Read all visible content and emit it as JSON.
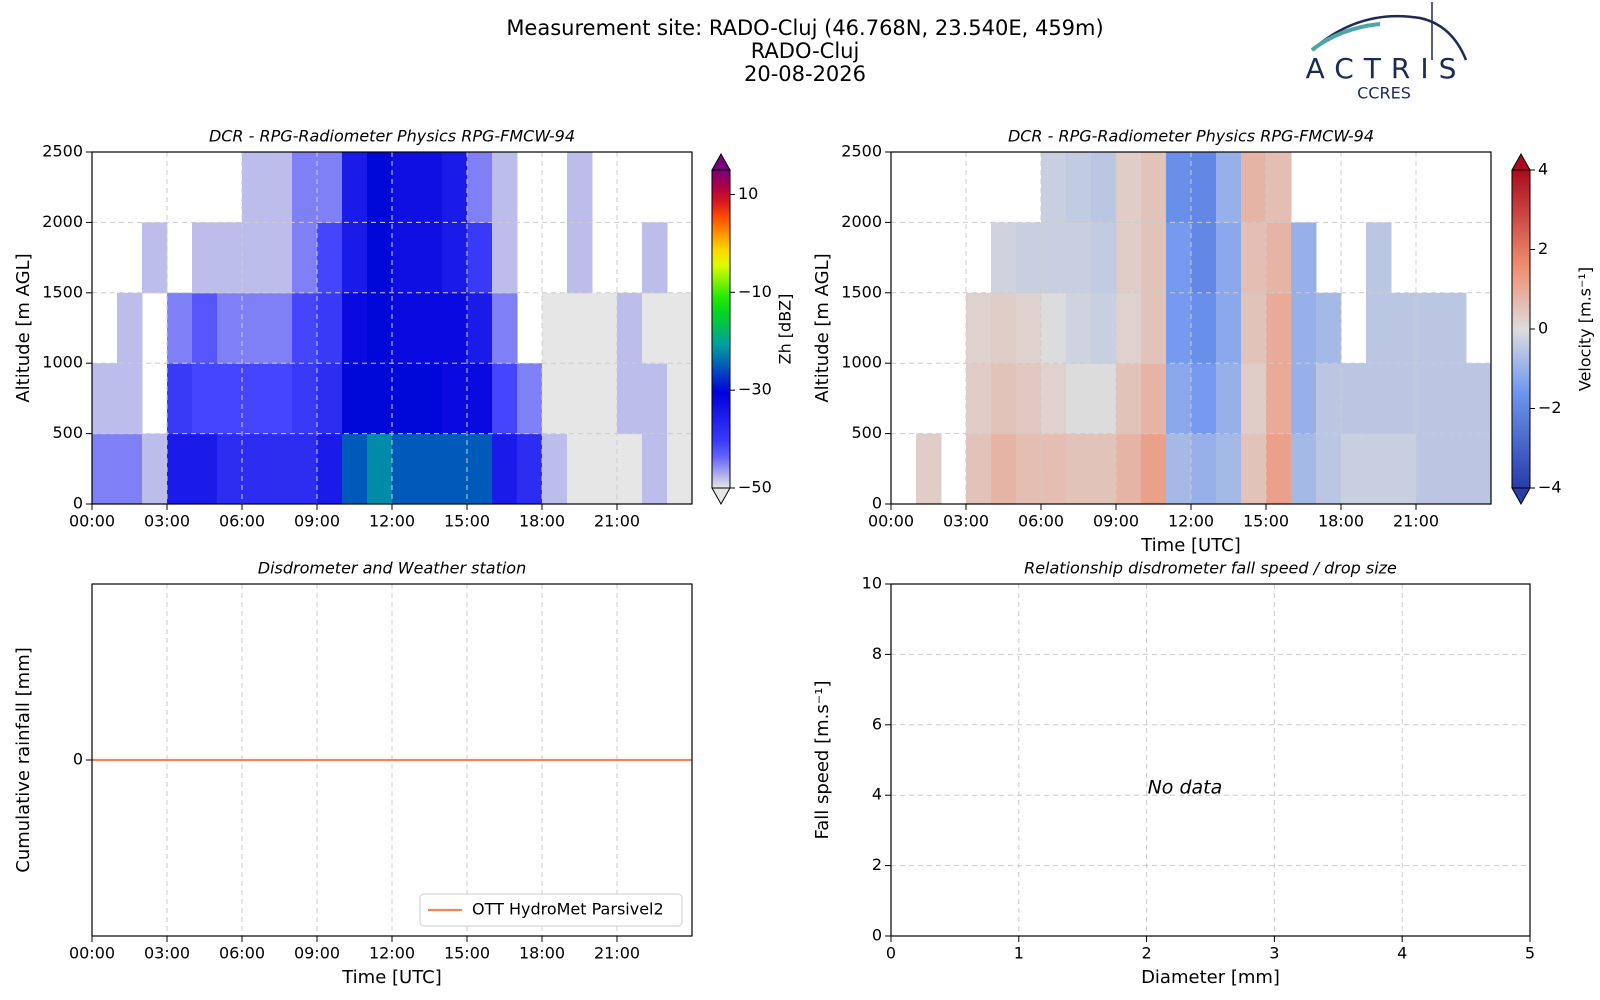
{
  "header": {
    "title_lines": [
      "Measurement site: RADO-Cluj (46.768N, 23.540E, 459m)",
      "RADO-Cluj",
      "20-08-2026"
    ],
    "logo": {
      "name": "ACTRIS",
      "sub": "CCRES"
    }
  },
  "chart_data": [
    {
      "type": "heatmap",
      "title": "DCR - RPG-Radiometer Physics RPG-FMCW-94",
      "ylabel": "Altitude [m AGL]",
      "xlim": [
        0,
        24
      ],
      "xticks": [
        {
          "value": 0,
          "label": "00:00"
        },
        {
          "value": 3,
          "label": "03:00"
        },
        {
          "value": 6,
          "label": "06:00"
        },
        {
          "value": 9,
          "label": "09:00"
        },
        {
          "value": 12,
          "label": "12:00"
        },
        {
          "value": 15,
          "label": "15:00"
        },
        {
          "value": 18,
          "label": "18:00"
        },
        {
          "value": 21,
          "label": "21:00"
        }
      ],
      "ylim": [
        0,
        2500
      ],
      "yticks": [
        0,
        500,
        1000,
        1500,
        2000,
        2500
      ],
      "grid": true,
      "x_edges": [
        0,
        1,
        2,
        3,
        4,
        5,
        6,
        7,
        8,
        9,
        10,
        11,
        12,
        13,
        14,
        15,
        16,
        17,
        18,
        19,
        20,
        21,
        22,
        23,
        24
      ],
      "y_edges": [
        0,
        500,
        1000,
        1500,
        2000,
        2500
      ],
      "z": [
        [
          -45,
          -45,
          -48,
          -35,
          -35,
          -38,
          -38,
          -38,
          -38,
          -35,
          -25,
          -22,
          -25,
          -25,
          -25,
          -25,
          -35,
          -38,
          -48,
          -50,
          -50,
          -50,
          -48,
          -50
        ],
        [
          -48,
          -48,
          null,
          -40,
          -42,
          -42,
          -42,
          -42,
          -40,
          -38,
          -30,
          -30,
          -30,
          -30,
          -32,
          -32,
          -42,
          -45,
          -50,
          -50,
          -50,
          -48,
          -48,
          -50
        ],
        [
          null,
          -48,
          null,
          -45,
          -43,
          -45,
          -45,
          -45,
          -42,
          -40,
          -32,
          -30,
          -32,
          -32,
          -32,
          -35,
          -45,
          null,
          -50,
          -50,
          -50,
          -48,
          -50,
          -50
        ],
        [
          null,
          null,
          -48,
          null,
          -48,
          -48,
          -48,
          -48,
          -45,
          -42,
          -35,
          -30,
          -33,
          -33,
          -35,
          -40,
          -48,
          null,
          null,
          -48,
          null,
          null,
          -48,
          null
        ],
        [
          null,
          null,
          null,
          null,
          null,
          null,
          -48,
          -48,
          -45,
          -45,
          -35,
          -30,
          -33,
          -33,
          -35,
          -45,
          -48,
          null,
          null,
          -48,
          null,
          null,
          null,
          null
        ]
      ],
      "clabel": "Zh [dBZ]",
      "clim": [
        -50,
        15
      ],
      "cticks": [
        {
          "value": -50,
          "label": "−50"
        },
        {
          "value": -30,
          "label": "−30"
        },
        {
          "value": -10,
          "label": "−10"
        },
        10
      ]
    },
    {
      "type": "heatmap",
      "title": "DCR - RPG-Radiometer Physics RPG-FMCW-94",
      "ylabel": "Altitude [m AGL]",
      "xlabel": "Time [UTC]",
      "xlim": [
        0,
        24
      ],
      "xticks": [
        {
          "value": 0,
          "label": "00:00"
        },
        {
          "value": 3,
          "label": "03:00"
        },
        {
          "value": 6,
          "label": "06:00"
        },
        {
          "value": 9,
          "label": "09:00"
        },
        {
          "value": 12,
          "label": "12:00"
        },
        {
          "value": 15,
          "label": "15:00"
        },
        {
          "value": 18,
          "label": "18:00"
        },
        {
          "value": 21,
          "label": "21:00"
        }
      ],
      "ylim": [
        0,
        2500
      ],
      "yticks": [
        0,
        500,
        1000,
        1500,
        2000,
        2500
      ],
      "grid": true,
      "x_edges": [
        0,
        1,
        2,
        3,
        4,
        5,
        6,
        7,
        8,
        9,
        10,
        11,
        12,
        13,
        14,
        15,
        16,
        17,
        18,
        19,
        20,
        21,
        22,
        23,
        24
      ],
      "y_edges": [
        0,
        500,
        1000,
        1500,
        2000,
        2500
      ],
      "z": [
        [
          null,
          0.3,
          null,
          0.5,
          0.8,
          0.6,
          0.6,
          0.5,
          0.5,
          0.8,
          1.2,
          -0.8,
          -1.0,
          -0.8,
          0.5,
          1.2,
          -0.8,
          -0.5,
          -0.3,
          -0.3,
          -0.3,
          -0.5,
          -0.5,
          -0.5
        ],
        [
          null,
          null,
          null,
          0.3,
          0.5,
          0.4,
          0.2,
          0,
          0,
          0.5,
          0.8,
          -1.2,
          -1.5,
          -1.0,
          0.3,
          1.0,
          -1.0,
          -0.5,
          -0.5,
          -0.5,
          -0.5,
          -0.5,
          -0.5,
          -0.5
        ],
        [
          null,
          null,
          null,
          0.2,
          0.3,
          0.2,
          0,
          -0.2,
          -0.3,
          0.2,
          0.5,
          -1.5,
          -1.8,
          -1.2,
          0.5,
          1.0,
          -1.0,
          -0.8,
          null,
          -0.5,
          -0.5,
          -0.5,
          -0.5,
          null
        ],
        [
          null,
          null,
          null,
          null,
          -0.2,
          -0.3,
          -0.3,
          -0.3,
          -0.4,
          0.3,
          0.5,
          -1.5,
          -2.0,
          -1.2,
          0.6,
          0.8,
          -1.0,
          null,
          null,
          -0.5,
          null,
          null,
          null,
          null
        ],
        [
          null,
          null,
          null,
          null,
          null,
          null,
          -0.3,
          -0.4,
          -0.5,
          0.3,
          0.5,
          -1.8,
          -2.0,
          -1.0,
          0.8,
          0.6,
          null,
          null,
          null,
          null,
          null,
          null,
          null,
          null
        ]
      ],
      "clabel": "Velocity [m.s⁻¹]",
      "clim": [
        -4,
        4
      ],
      "cticks": [
        {
          "value": -4,
          "label": "−4"
        },
        {
          "value": -2,
          "label": "−2"
        },
        0,
        2,
        4
      ]
    },
    {
      "type": "line",
      "title": "Disdrometer and Weather station",
      "ylabel": "Cumulative rainfall [mm]",
      "xlabel": "Time [UTC]",
      "xlim": [
        0,
        24
      ],
      "xticks": [
        {
          "value": 0,
          "label": "00:00"
        },
        {
          "value": 3,
          "label": "03:00"
        },
        {
          "value": 6,
          "label": "06:00"
        },
        {
          "value": 9,
          "label": "09:00"
        },
        {
          "value": 12,
          "label": "12:00"
        },
        {
          "value": 15,
          "label": "15:00"
        },
        {
          "value": 18,
          "label": "18:00"
        },
        {
          "value": 21,
          "label": "21:00"
        }
      ],
      "ylim": [
        -1,
        1
      ],
      "yticks": [
        0
      ],
      "grid": true,
      "legend": "lower right",
      "x": [
        0,
        24
      ],
      "series": [
        {
          "name": "OTT HydroMet Parsivel2",
          "color": "#f0875a",
          "values": [
            0,
            0
          ]
        }
      ]
    },
    {
      "type": "scatter",
      "title": "Relationship disdrometer fall speed / drop size",
      "ylabel": "Fall speed [m.s⁻¹]",
      "xlabel": "Diameter [mm]",
      "xlim": [
        0,
        5
      ],
      "xticks": [
        0,
        1,
        2,
        3,
        4,
        5
      ],
      "ylim": [
        0,
        10
      ],
      "yticks": [
        0,
        2,
        4,
        6,
        8,
        10
      ],
      "grid": true,
      "annotation": "No data"
    }
  ]
}
